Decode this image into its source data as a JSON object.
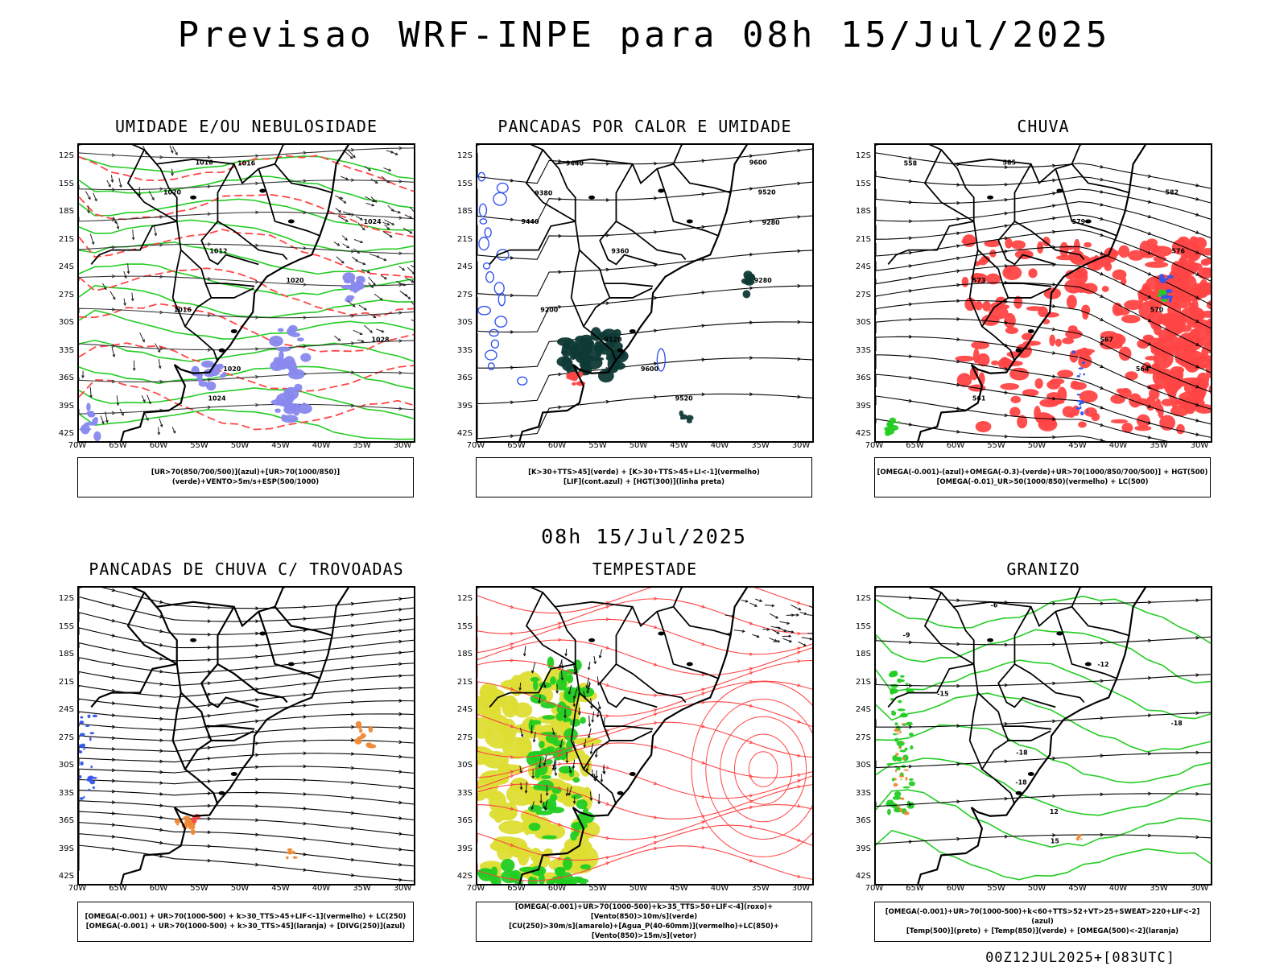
{
  "header": {
    "title": "Previsao WRF-INPE  para 08h 15/Jul/2025",
    "subtitle": "08h 15/Jul/2025"
  },
  "axes": {
    "lat_labels": [
      "12S",
      "15S",
      "18S",
      "21S",
      "24S",
      "27S",
      "30S",
      "33S",
      "36S",
      "39S",
      "42S"
    ],
    "lon_labels": [
      "70W",
      "65W",
      "60W",
      "55W",
      "50W",
      "45W",
      "40W",
      "35W",
      "30W"
    ]
  },
  "panels": [
    {
      "title": "UMIDADE E/OU NEBULOSIDADE",
      "legend": [
        "[UR>70(850/700/500)](azul)+[UR>70(1000/850)](verde)+VENTO>5m/s+ESP(500/1000)"
      ],
      "contour_labels": [
        "1016",
        "1020",
        "1024",
        "1012",
        "1020",
        "1016",
        "1028",
        "1020",
        "1024",
        "1016"
      ]
    },
    {
      "title": "PANCADAS POR CALOR E UMIDADE",
      "legend": [
        "[K>30+TTS>45](verde) + [K>30+TTS>45+LI<-1](vermelho)",
        "[LIF](cont.azul) + [HGT(300)](linha preta)"
      ],
      "contour_labels": [
        "9600",
        "9520",
        "9440",
        "9360",
        "9280",
        "9200",
        "9120",
        "9600",
        "9520",
        "9440",
        "9380",
        "9280"
      ]
    },
    {
      "title": "CHUVA",
      "legend": [
        "[OMEGA(-0.001)-(azul)+OMEGA(-0.3)-(verde)+UR>70(1000/850/700/500)] + HGT(500)",
        "[OMEGA(-0.01)_UR>50(1000/850)(vermelho) + LC(500)"
      ],
      "contour_labels": [
        "585",
        "582",
        "579",
        "576",
        "573",
        "570",
        "567",
        "564",
        "561",
        "558"
      ]
    },
    {
      "title": "PANCADAS DE CHUVA C/ TROVOADAS",
      "legend": [
        "[OMEGA(-0.001) + UR>70(1000-500) + k>30_TTS>45+LIF<-1](vermelho) + LC(250)",
        "[OMEGA(-0.001) + UR>70(1000-500) + k>30_TTS>45](laranja) + [DIVG(250)](azul)"
      ],
      "contour_labels": []
    },
    {
      "title": "TEMPESTADE",
      "legend": [
        "[OMEGA(-0.001)+UR>70(1000-500)+k>35_TTS>50+LIF<-4](roxo)+[Vento(850)>10m/s](verde)",
        "[CU(250)>30m/s](amarelo)+[Agua_P(40-60mm)](vermelho)+LC(850)+[Vento(850)>15m/s](vetor)"
      ],
      "contour_labels": []
    },
    {
      "title": "GRANIZO",
      "legend": [
        "[OMEGA(-0.001)+UR>70(1000-500)+k<60+TTS>52+VT>25+SWEAT>220+LIF<-2](azul)",
        "[Temp(500)](preto) + [Temp(850)](verde) + [OMEGA(500)<-2](laranja)"
      ],
      "contour_labels": [
        "-6",
        "-9",
        "-12",
        "-15",
        "-18",
        "-18",
        "-18",
        "12",
        "15"
      ]
    }
  ],
  "footer": "00Z12JUL2025+[083UTC]",
  "colors": {
    "green": "#22cc22",
    "red": "#ff4444",
    "blue": "#3355ee",
    "purple": "#8888ee",
    "dark_teal": "#0f3a36",
    "yellow": "#dddd33",
    "orange": "#ee8833"
  }
}
